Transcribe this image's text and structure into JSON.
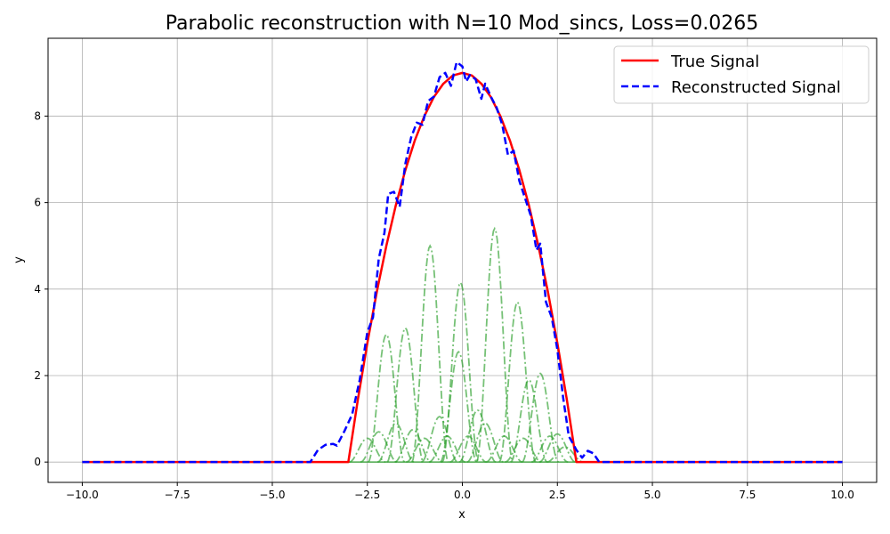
{
  "chart_data": {
    "type": "line",
    "title": "Parabolic reconstruction with N=10 Mod_sincs, Loss=0.0265",
    "xlabel": "x",
    "ylabel": "y",
    "xlim": [
      -10.9,
      10.9
    ],
    "ylim": [
      -0.47,
      9.8
    ],
    "xticks": [
      -10.0,
      -7.5,
      -5.0,
      -2.5,
      0.0,
      2.5,
      5.0,
      7.5,
      10.0
    ],
    "xtick_labels": [
      "−10.0",
      "−7.5",
      "−5.0",
      "−2.5",
      "0.0",
      "2.5",
      "5.0",
      "7.5",
      "10.0"
    ],
    "yticks": [
      0,
      2,
      4,
      6,
      8
    ],
    "ytick_labels": [
      "0",
      "2",
      "4",
      "6",
      "8"
    ],
    "grid": true,
    "legend": {
      "position": "top-right",
      "entries": [
        "True Signal",
        "Reconstructed Signal"
      ]
    },
    "series": [
      {
        "name": "True Signal",
        "color": "#ff0000",
        "style": "solid",
        "points": [
          [
            -10,
            0
          ],
          [
            -3,
            0
          ],
          [
            -2.75,
            1.44
          ],
          [
            -2.5,
            2.75
          ],
          [
            -2.25,
            3.94
          ],
          [
            -2,
            5
          ],
          [
            -1.75,
            5.94
          ],
          [
            -1.5,
            6.75
          ],
          [
            -1.25,
            7.44
          ],
          [
            -1,
            8
          ],
          [
            -0.75,
            8.44
          ],
          [
            -0.5,
            8.75
          ],
          [
            -0.25,
            8.94
          ],
          [
            0,
            9
          ],
          [
            0.25,
            8.94
          ],
          [
            0.5,
            8.75
          ],
          [
            0.75,
            8.44
          ],
          [
            1,
            8
          ],
          [
            1.25,
            7.44
          ],
          [
            1.5,
            6.75
          ],
          [
            1.75,
            5.94
          ],
          [
            2,
            5
          ],
          [
            2.25,
            3.94
          ],
          [
            2.5,
            2.75
          ],
          [
            2.75,
            1.44
          ],
          [
            3,
            0
          ],
          [
            10,
            0
          ]
        ]
      },
      {
        "name": "Reconstructed Signal",
        "color": "#0000ff",
        "style": "dashed",
        "points": [
          [
            -10,
            0
          ],
          [
            -4,
            0
          ],
          [
            -3.8,
            0.28
          ],
          [
            -3.6,
            0.4
          ],
          [
            -3.4,
            0.42
          ],
          [
            -3.3,
            0.38
          ],
          [
            -3.1,
            0.72
          ],
          [
            -2.9,
            1.1
          ],
          [
            -2.7,
            1.9
          ],
          [
            -2.5,
            3.0
          ],
          [
            -2.35,
            3.35
          ],
          [
            -2.2,
            4.7
          ],
          [
            -2.05,
            5.3
          ],
          [
            -1.95,
            6.2
          ],
          [
            -1.8,
            6.25
          ],
          [
            -1.65,
            5.9
          ],
          [
            -1.5,
            6.9
          ],
          [
            -1.35,
            7.5
          ],
          [
            -1.2,
            7.85
          ],
          [
            -1.05,
            7.8
          ],
          [
            -0.9,
            8.35
          ],
          [
            -0.75,
            8.45
          ],
          [
            -0.6,
            8.9
          ],
          [
            -0.45,
            9.0
          ],
          [
            -0.3,
            8.7
          ],
          [
            -0.15,
            9.25
          ],
          [
            0,
            9.15
          ],
          [
            0.1,
            8.8
          ],
          [
            0.2,
            8.95
          ],
          [
            0.35,
            8.85
          ],
          [
            0.5,
            8.4
          ],
          [
            0.6,
            8.75
          ],
          [
            0.75,
            8.45
          ],
          [
            0.9,
            8.2
          ],
          [
            1.05,
            7.8
          ],
          [
            1.2,
            7.1
          ],
          [
            1.35,
            7.2
          ],
          [
            1.5,
            6.5
          ],
          [
            1.65,
            6.1
          ],
          [
            1.8,
            5.7
          ],
          [
            1.95,
            4.9
          ],
          [
            2.05,
            5.05
          ],
          [
            2.2,
            3.7
          ],
          [
            2.35,
            3.35
          ],
          [
            2.5,
            2.6
          ],
          [
            2.65,
            1.5
          ],
          [
            2.8,
            0.6
          ],
          [
            3.0,
            0.28
          ],
          [
            3.15,
            0.1
          ],
          [
            3.3,
            0.26
          ],
          [
            3.45,
            0.2
          ],
          [
            3.6,
            0
          ],
          [
            10,
            0
          ]
        ]
      }
    ],
    "components": {
      "name": "",
      "color": "#2ca02c",
      "style": "dashdot",
      "peaks": [
        [
          -2.5,
          0.55
        ],
        [
          -2.2,
          0.7
        ],
        [
          -2.0,
          2.95
        ],
        [
          -1.75,
          0.9
        ],
        [
          -1.5,
          3.1
        ],
        [
          -1.3,
          0.75
        ],
        [
          -1.0,
          0.55
        ],
        [
          -0.85,
          5.0
        ],
        [
          -0.6,
          1.05
        ],
        [
          -0.4,
          0.6
        ],
        [
          -0.1,
          2.55
        ],
        [
          -0.05,
          4.15
        ],
        [
          0.15,
          0.6
        ],
        [
          0.4,
          1.2
        ],
        [
          0.6,
          0.9
        ],
        [
          0.85,
          5.4
        ],
        [
          1.1,
          0.6
        ],
        [
          1.45,
          3.7
        ],
        [
          1.6,
          0.55
        ],
        [
          1.75,
          1.9
        ],
        [
          2.05,
          2.05
        ],
        [
          2.3,
          0.6
        ],
        [
          2.5,
          0.65
        ],
        [
          2.7,
          0.35
        ]
      ]
    }
  }
}
